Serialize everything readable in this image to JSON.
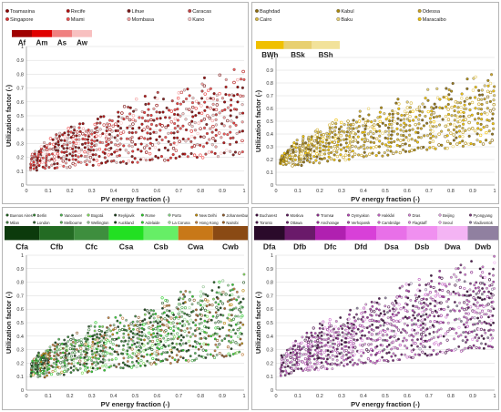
{
  "chart_data": [
    {
      "type": "scatter",
      "ylabel": "Utilization factor (-)",
      "xlabel": "PV energy fraction (-)",
      "xlim": [
        0,
        1
      ],
      "ylim": [
        0,
        1
      ],
      "xticks": [
        "0",
        "0.1",
        "0.2",
        "0.3",
        "0.4",
        "0.5",
        "0.6",
        "0.7",
        "0.8",
        "0.9",
        "1"
      ],
      "yticks": [
        "0",
        "0.1",
        "0.2",
        "0.3",
        "0.4",
        "0.5",
        "0.6",
        "0.7",
        "0.8",
        "0.9",
        "1"
      ],
      "grid": true,
      "cities": [
        {
          "name": "Toamasina",
          "color": "#8b0000"
        },
        {
          "name": "Recife",
          "color": "#b01010"
        },
        {
          "name": "Lihue",
          "color": "#7a1818"
        },
        {
          "name": "Caracas",
          "color": "#c04040"
        },
        {
          "name": "Singapore",
          "color": "#e03030"
        },
        {
          "name": "Miami",
          "color": "#f05050"
        },
        {
          "name": "Mombasa",
          "color": "#f4a0a0"
        },
        {
          "name": "Kano",
          "color": "#f8c8c8"
        }
      ],
      "climates": [
        {
          "label": "Af",
          "color": "#a00000"
        },
        {
          "label": "Am",
          "color": "#e00000"
        },
        {
          "label": "As",
          "color": "#f08080"
        },
        {
          "label": "Aw",
          "color": "#f8c0c0"
        }
      ],
      "envelope": {
        "base_min": 0.1,
        "base_max": 0.14,
        "top_at_0": 0.16,
        "top_at_1": 0.8,
        "curve": 0.6,
        "pinch_mid": 0.12
      }
    },
    {
      "type": "scatter",
      "ylabel": "Utilization factor (-)",
      "xlabel": "PV energy fraction (-)",
      "xlim": [
        0,
        1
      ],
      "ylim": [
        0,
        1
      ],
      "xticks": [
        "0",
        "0.1",
        "0.2",
        "0.3",
        "0.4",
        "0.5",
        "0.6",
        "0.7",
        "0.8",
        "0.9",
        "1"
      ],
      "yticks": [
        "0",
        "0.1",
        "0.2",
        "0.3",
        "0.4",
        "0.5",
        "0.6",
        "0.7",
        "0.8",
        "0.9",
        "1"
      ],
      "grid": true,
      "cities": [
        {
          "name": "Baghdad",
          "color": "#8a6a10"
        },
        {
          "name": "Kabul",
          "color": "#a8860a"
        },
        {
          "name": "Odessa",
          "color": "#c8a020"
        },
        {
          "name": "Cairo",
          "color": "#d8b840"
        },
        {
          "name": "Baku",
          "color": "#e8d070"
        },
        {
          "name": "Maracaibo",
          "color": "#f0c000"
        }
      ],
      "climates": [
        {
          "label": "BWh",
          "color": "#f0c000"
        },
        {
          "label": "BSk",
          "color": "#e8d070"
        },
        {
          "label": "BSh",
          "color": "#f2e29a"
        }
      ],
      "envelope": {
        "base_min": 0.13,
        "base_max": 0.17,
        "top_at_0": 0.18,
        "top_at_1": 0.85,
        "curve": 0.6,
        "pinch_mid": 0.2
      }
    },
    {
      "type": "scatter",
      "ylabel": "Utilization factor (-)",
      "xlabel": "PV energy fraction (-)",
      "xlim": [
        0,
        1
      ],
      "ylim": [
        0,
        1
      ],
      "xticks": [
        "0",
        "0.1",
        "0.2",
        "0.3",
        "0.4",
        "0.5",
        "0.6",
        "0.7",
        "0.8",
        "0.9",
        "1"
      ],
      "yticks": [
        "0",
        "0.1",
        "0.2",
        "0.3",
        "0.4",
        "0.5",
        "0.6",
        "0.7",
        "0.8",
        "0.9",
        "1"
      ],
      "grid": true,
      "cities": [
        {
          "name": "Buenos Aires",
          "color": "#1a5c1a"
        },
        {
          "name": "Berlin",
          "color": "#2e7d2e"
        },
        {
          "name": "Vancouver",
          "color": "#4caf50"
        },
        {
          "name": "Bogotá",
          "color": "#7ed957"
        },
        {
          "name": "Reykjavik",
          "color": "#1b3d1b"
        },
        {
          "name": "Rome",
          "color": "#27c427"
        },
        {
          "name": "Porto",
          "color": "#80d080"
        },
        {
          "name": "New Delhi",
          "color": "#b8860b"
        },
        {
          "name": "Johannesburg",
          "color": "#8b5a2b"
        },
        {
          "name": "Milan",
          "color": "#3a7a3a"
        },
        {
          "name": "London",
          "color": "#2a5a2a"
        },
        {
          "name": "Melbourne",
          "color": "#55aa55"
        },
        {
          "name": "Wellington",
          "color": "#90c090"
        },
        {
          "name": "Auckland",
          "color": "#104010"
        },
        {
          "name": "Adelaide",
          "color": "#30d030"
        },
        {
          "name": "La Coruna",
          "color": "#a0e0a0"
        },
        {
          "name": "Hong Kong",
          "color": "#c08040"
        },
        {
          "name": "Nairobi",
          "color": "#a06020"
        }
      ],
      "climates": [
        {
          "label": "Cfa",
          "color": "#0c3a0c"
        },
        {
          "label": "Cfb",
          "color": "#236b23"
        },
        {
          "label": "Cfc",
          "color": "#3e8e3e"
        },
        {
          "label": "Csa",
          "color": "#22e022"
        },
        {
          "label": "Csb",
          "color": "#66ee66"
        },
        {
          "label": "Cwa",
          "color": "#c87818"
        },
        {
          "label": "Cwb",
          "color": "#8a4a14"
        }
      ],
      "envelope": {
        "base_min": 0.08,
        "base_max": 0.12,
        "top_at_0": 0.16,
        "top_at_1": 0.8,
        "curve": 0.6,
        "pinch_mid": 0.18
      }
    },
    {
      "type": "scatter",
      "ylabel": "Utilization factor (-)",
      "xlabel": "PV energy fraction (-)",
      "xlim": [
        0,
        1
      ],
      "ylim": [
        0,
        1
      ],
      "xticks": [
        "0",
        "0.1",
        "0.2",
        "0.3",
        "0.4",
        "0.5",
        "0.6",
        "0.7",
        "0.8",
        "0.9",
        "1"
      ],
      "yticks": [
        "0",
        "0.1",
        "0.2",
        "0.3",
        "0.4",
        "0.5",
        "0.6",
        "0.7",
        "0.8",
        "0.9",
        "1"
      ],
      "grid": true,
      "cities": [
        {
          "name": "Bucharest",
          "color": "#3a0a3a"
        },
        {
          "name": "Moskva",
          "color": "#5a1a5a"
        },
        {
          "name": "Tromsø",
          "color": "#8a2a8a"
        },
        {
          "name": "Oymyakon",
          "color": "#b040b0"
        },
        {
          "name": "Hakkâri",
          "color": "#c060c0"
        },
        {
          "name": "Dras",
          "color": "#d080d0"
        },
        {
          "name": "Beijing",
          "color": "#e0a0e0"
        },
        {
          "name": "Pyongyang",
          "color": "#7a3a7a"
        },
        {
          "name": "Toronto",
          "color": "#4a104a"
        },
        {
          "name": "Ottawa",
          "color": "#6a206a"
        },
        {
          "name": "Anchorage",
          "color": "#9a309a"
        },
        {
          "name": "Verhojansk",
          "color": "#a850a8"
        },
        {
          "name": "Cambridge",
          "color": "#d070d0"
        },
        {
          "name": "Flagstaff",
          "color": "#e090e0"
        },
        {
          "name": "Seoul",
          "color": "#f0b0f0"
        },
        {
          "name": "Vladivostok",
          "color": "#9080a0"
        }
      ],
      "climates": [
        {
          "label": "Dfa",
          "color": "#2a0a2a"
        },
        {
          "label": "Dfb",
          "color": "#6a1a6a"
        },
        {
          "label": "Dfc",
          "color": "#b020b0"
        },
        {
          "label": "Dfd",
          "color": "#d840d8"
        },
        {
          "label": "Dsa",
          "color": "#e870e8"
        },
        {
          "label": "Dsb",
          "color": "#f090f0"
        },
        {
          "label": "Dwa",
          "color": "#f4b4f4"
        },
        {
          "label": "Dwb",
          "color": "#9080a0"
        }
      ],
      "envelope": {
        "base_min": 0.1,
        "base_max": 0.14,
        "top_at_0": 0.18,
        "top_at_1": 0.95,
        "curve": 0.6,
        "pinch_mid": 0.22
      }
    }
  ]
}
